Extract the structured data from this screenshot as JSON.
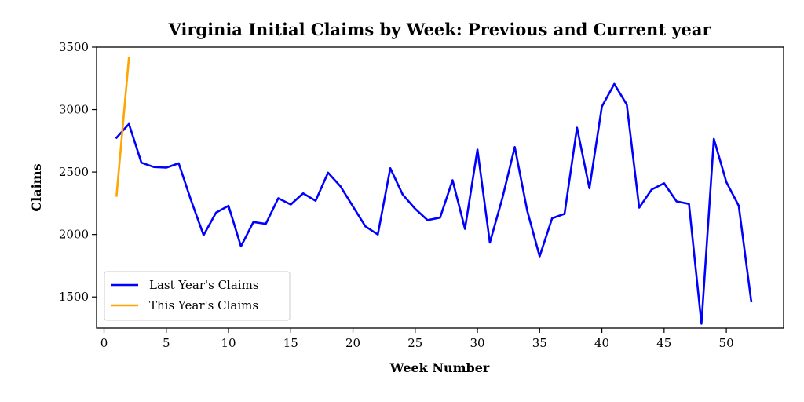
{
  "chart_data": {
    "type": "line",
    "title": "Virginia Initial Claims by Week: Previous and Current year",
    "xlabel": "Week Number",
    "ylabel": "Claims",
    "xlim": [
      -0.6,
      54.6
    ],
    "ylim": [
      1250,
      3500
    ],
    "xticks": [
      0,
      5,
      10,
      15,
      20,
      25,
      30,
      35,
      40,
      45,
      50
    ],
    "yticks": [
      1500,
      2000,
      2500,
      3000,
      3500
    ],
    "grid": false,
    "legend_position": "lower-left",
    "series": [
      {
        "name": "Last Year's Claims",
        "color": "#0000ff",
        "x": [
          1,
          2,
          3,
          4,
          5,
          6,
          7,
          8,
          9,
          10,
          11,
          12,
          13,
          14,
          15,
          16,
          17,
          18,
          19,
          20,
          21,
          22,
          23,
          24,
          25,
          26,
          27,
          28,
          29,
          30,
          31,
          32,
          33,
          34,
          35,
          36,
          37,
          38,
          39,
          40,
          41,
          42,
          43,
          44,
          45,
          46,
          47,
          48,
          49,
          50,
          51,
          52
        ],
        "y": [
          2775,
          2885,
          2575,
          2540,
          2535,
          2570,
          2270,
          1995,
          2175,
          2230,
          1905,
          2100,
          2085,
          2290,
          2240,
          2330,
          2270,
          2495,
          2385,
          2225,
          2065,
          2000,
          2530,
          2320,
          2205,
          2115,
          2135,
          2435,
          2045,
          2680,
          1935,
          2290,
          2700,
          2190,
          1825,
          2130,
          2165,
          2855,
          2370,
          3025,
          3205,
          3040,
          2215,
          2360,
          2410,
          2265,
          2245,
          1285,
          2765,
          2420,
          2230,
          1465
        ]
      },
      {
        "name": "This Year's Claims",
        "color": "#ffa500",
        "x": [
          1,
          2
        ],
        "y": [
          2310,
          3415
        ]
      }
    ]
  }
}
